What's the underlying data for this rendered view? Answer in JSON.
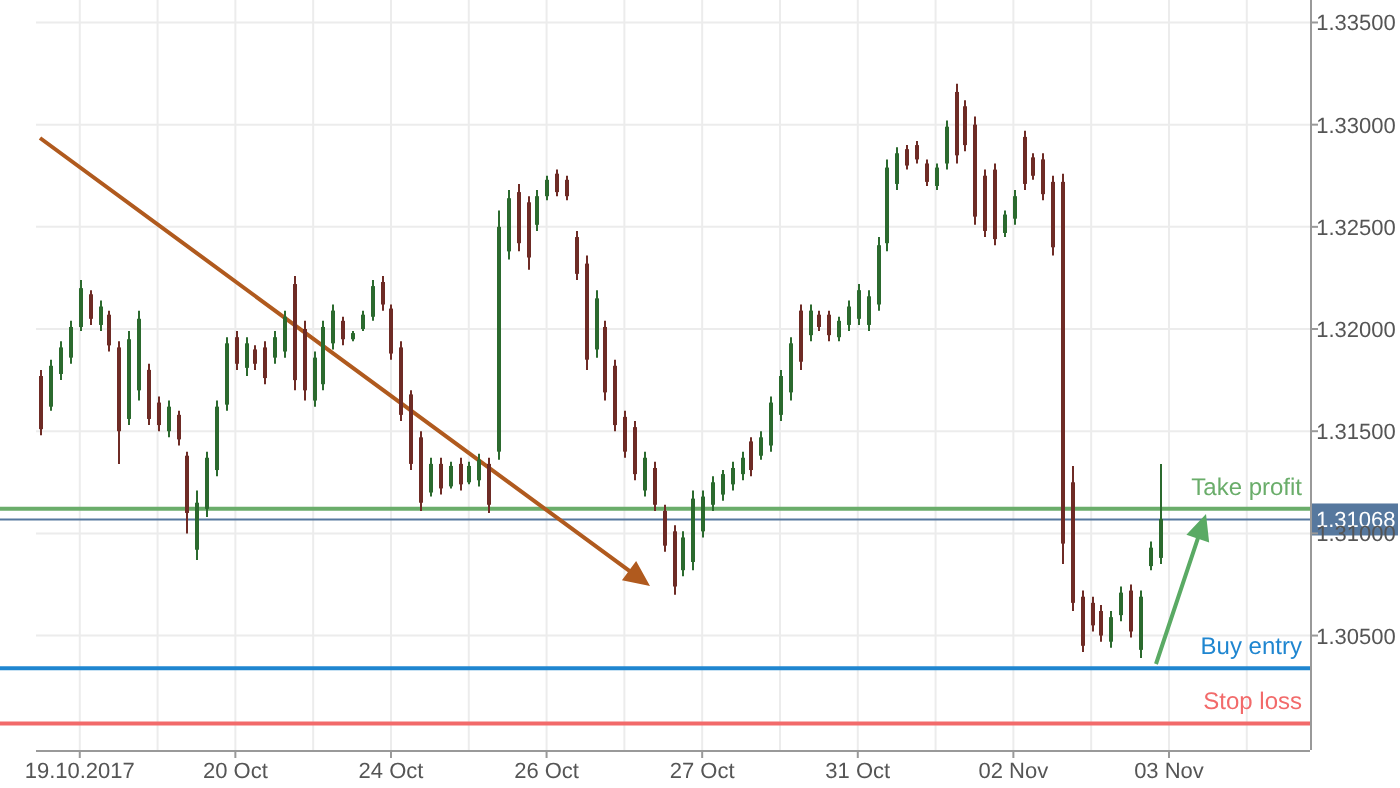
{
  "chart_data": {
    "type": "candlestick",
    "categories": [
      null,
      null,
      null,
      null,
      "19.10.2017",
      null,
      null,
      null,
      null,
      null,
      null,
      null,
      null,
      null,
      null,
      null,
      null,
      null,
      null,
      null,
      "20 Oct",
      null,
      null,
      null,
      null,
      null,
      null,
      null,
      null,
      null,
      null,
      null,
      null,
      null,
      null,
      null,
      "24 Oct",
      null,
      null,
      null,
      null,
      null,
      null,
      null,
      null,
      null,
      null,
      null,
      null,
      null,
      null,
      null,
      "26 Oct",
      null,
      null,
      null,
      null,
      null,
      null,
      null,
      null,
      null,
      null,
      null,
      null,
      null,
      null,
      null,
      "27 Oct",
      null,
      null,
      null,
      null,
      null,
      null,
      null,
      null,
      null,
      null,
      null,
      null,
      null,
      null,
      null,
      "31 Oct",
      null,
      null,
      null,
      null,
      null,
      null,
      null,
      null,
      null,
      null,
      null,
      null,
      null,
      null,
      null,
      "02 Nov",
      null,
      null,
      null,
      null,
      null,
      null,
      null,
      null,
      null,
      null,
      null,
      null,
      null,
      null,
      null,
      "03 Nov",
      null,
      null,
      null,
      null,
      null,
      null,
      null,
      null,
      null,
      null,
      null,
      null,
      null,
      null
    ],
    "ohlc": [
      [
        1.3177,
        1.318,
        1.3148,
        1.3151
      ],
      [
        1.3162,
        1.3185,
        1.316,
        1.3182
      ],
      [
        1.3178,
        1.3194,
        1.3175,
        1.3191
      ],
      [
        1.3186,
        1.3204,
        1.3183,
        1.3201
      ],
      [
        1.3201,
        1.3224,
        1.3199,
        1.322
      ],
      [
        1.3217,
        1.3219,
        1.3202,
        1.3205
      ],
      [
        1.3202,
        1.3214,
        1.3199,
        1.3211
      ],
      [
        1.3207,
        1.3209,
        1.3189,
        1.3192
      ],
      [
        1.3191,
        1.3194,
        1.3134,
        1.315
      ],
      [
        1.3156,
        1.3199,
        1.3153,
        1.3195
      ],
      [
        1.317,
        1.3209,
        1.3165,
        1.3205
      ],
      [
        1.318,
        1.3183,
        1.3153,
        1.3156
      ],
      [
        1.3164,
        1.3167,
        1.315,
        1.3153
      ],
      [
        1.315,
        1.3165,
        1.3147,
        1.3162
      ],
      [
        1.3158,
        1.316,
        1.3143,
        1.3146
      ],
      [
        1.3138,
        1.314,
        1.31,
        1.311
      ],
      [
        1.3092,
        1.3121,
        1.3087,
        1.3115
      ],
      [
        1.3112,
        1.314,
        1.3108,
        1.3137
      ],
      [
        1.3131,
        1.3165,
        1.3128,
        1.3162
      ],
      [
        1.3163,
        1.3196,
        1.316,
        1.3193
      ],
      [
        1.3196,
        1.3199,
        1.318,
        1.3183
      ],
      [
        1.3181,
        1.3196,
        1.3177,
        1.3193
      ],
      [
        1.319,
        1.3192,
        1.318,
        1.3183
      ],
      [
        1.3191,
        1.3194,
        1.3173,
        1.3176
      ],
      [
        1.3186,
        1.3199,
        1.3183,
        1.3196
      ],
      [
        1.3189,
        1.3209,
        1.3186,
        1.3206
      ],
      [
        1.3222,
        1.3226,
        1.317,
        1.3175
      ],
      [
        1.32,
        1.3204,
        1.3165,
        1.317
      ],
      [
        1.3165,
        1.3189,
        1.3162,
        1.3186
      ],
      [
        1.3173,
        1.3204,
        1.317,
        1.3201
      ],
      [
        1.3193,
        1.3212,
        1.319,
        1.3209
      ],
      [
        1.3204,
        1.3206,
        1.3192,
        1.3195
      ],
      [
        1.3195,
        1.3199,
        1.3194,
        1.3198
      ],
      [
        1.32,
        1.3209,
        1.3199,
        1.3207
      ],
      [
        1.3206,
        1.3224,
        1.3204,
        1.3221
      ],
      [
        1.3223,
        1.3226,
        1.3209,
        1.3212
      ],
      [
        1.321,
        1.3212,
        1.3185,
        1.3188
      ],
      [
        1.3191,
        1.3194,
        1.3155,
        1.3158
      ],
      [
        1.3168,
        1.317,
        1.3131,
        1.3134
      ],
      [
        1.3147,
        1.315,
        1.3111,
        1.3115
      ],
      [
        1.312,
        1.3137,
        1.3118,
        1.3134
      ],
      [
        1.3134,
        1.3137,
        1.3119,
        1.3122
      ],
      [
        1.3123,
        1.3135,
        1.3122,
        1.3133
      ],
      [
        1.3134,
        1.3137,
        1.3121,
        1.3124
      ],
      [
        1.3125,
        1.3135,
        1.3124,
        1.3133
      ],
      [
        1.3126,
        1.3139,
        1.3123,
        1.3136
      ],
      [
        1.3134,
        1.3137,
        1.311,
        1.3114
      ],
      [
        1.314,
        1.3258,
        1.3136,
        1.325
      ],
      [
        1.3238,
        1.3268,
        1.3234,
        1.3264
      ],
      [
        1.3267,
        1.3271,
        1.3238,
        1.3242
      ],
      [
        1.3262,
        1.3265,
        1.3229,
        1.3235
      ],
      [
        1.3251,
        1.3268,
        1.3248,
        1.3265
      ],
      [
        1.3265,
        1.3275,
        1.3263,
        1.3273
      ],
      [
        1.3276,
        1.3278,
        1.3265,
        1.3267
      ],
      [
        1.3273,
        1.3275,
        1.3263,
        1.3265
      ],
      [
        1.3245,
        1.3248,
        1.3224,
        1.3227
      ],
      [
        1.3232,
        1.3236,
        1.318,
        1.3185
      ],
      [
        1.319,
        1.3219,
        1.3186,
        1.3215
      ],
      [
        1.3201,
        1.3204,
        1.3165,
        1.3169
      ],
      [
        1.3182,
        1.3185,
        1.315,
        1.3153
      ],
      [
        1.3157,
        1.316,
        1.3137,
        1.314
      ],
      [
        1.3152,
        1.3155,
        1.3126,
        1.3129
      ],
      [
        1.3121,
        1.314,
        1.3118,
        1.3137
      ],
      [
        1.3132,
        1.3135,
        1.3111,
        1.3114
      ],
      [
        1.3111,
        1.3114,
        1.3091,
        1.3094
      ],
      [
        1.3101,
        1.3104,
        1.307,
        1.3074
      ],
      [
        1.3082,
        1.3101,
        1.3079,
        1.3098
      ],
      [
        1.3086,
        1.3121,
        1.3082,
        1.3117
      ],
      [
        1.3101,
        1.3121,
        1.3098,
        1.3118
      ],
      [
        1.3114,
        1.3128,
        1.3111,
        1.3125
      ],
      [
        1.3119,
        1.3131,
        1.3116,
        1.3129
      ],
      [
        1.3124,
        1.3135,
        1.3121,
        1.3132
      ],
      [
        1.3129,
        1.314,
        1.3126,
        1.3137
      ],
      [
        1.3145,
        1.3147,
        1.3128,
        1.3131
      ],
      [
        1.3138,
        1.315,
        1.3136,
        1.3147
      ],
      [
        1.3143,
        1.3167,
        1.314,
        1.3164
      ],
      [
        1.3158,
        1.318,
        1.3155,
        1.3177
      ],
      [
        1.3169,
        1.3196,
        1.3165,
        1.3193
      ],
      [
        1.3209,
        1.3212,
        1.318,
        1.3184
      ],
      [
        1.3197,
        1.3212,
        1.3194,
        1.3209
      ],
      [
        1.3207,
        1.3209,
        1.3199,
        1.3201
      ],
      [
        1.3207,
        1.3209,
        1.3194,
        1.3197
      ],
      [
        1.3196,
        1.3206,
        1.3194,
        1.3204
      ],
      [
        1.3202,
        1.3214,
        1.3199,
        1.3211
      ],
      [
        1.3205,
        1.3222,
        1.3202,
        1.3219
      ],
      [
        1.3202,
        1.3219,
        1.3199,
        1.3216
      ],
      [
        1.3212,
        1.3245,
        1.3209,
        1.3241
      ],
      [
        1.3242,
        1.3283,
        1.3238,
        1.3279
      ],
      [
        1.3271,
        1.3289,
        1.3268,
        1.3286
      ],
      [
        1.3288,
        1.329,
        1.3278,
        1.328
      ],
      [
        1.329,
        1.3292,
        1.3281,
        1.3283
      ],
      [
        1.3281,
        1.3283,
        1.327,
        1.3272
      ],
      [
        1.327,
        1.3281,
        1.3268,
        1.3279
      ],
      [
        1.3281,
        1.3302,
        1.3278,
        1.3299
      ],
      [
        1.3316,
        1.332,
        1.3281,
        1.3285
      ],
      [
        1.3309,
        1.3312,
        1.3287,
        1.329
      ],
      [
        1.33,
        1.3304,
        1.3251,
        1.3255
      ],
      [
        1.3275,
        1.3278,
        1.3245,
        1.3248
      ],
      [
        1.3278,
        1.3281,
        1.3241,
        1.3244
      ],
      [
        1.3247,
        1.3258,
        1.3245,
        1.3256
      ],
      [
        1.3254,
        1.3268,
        1.3251,
        1.3265
      ],
      [
        1.3294,
        1.3297,
        1.3268,
        1.3271
      ],
      [
        1.3284,
        1.3286,
        1.3273,
        1.3275
      ],
      [
        1.3283,
        1.3286,
        1.3263,
        1.3266
      ],
      [
        1.3272,
        1.3275,
        1.3236,
        1.324
      ],
      [
        1.3272,
        1.3276,
        1.3085,
        1.3095
      ],
      [
        1.3125,
        1.3133,
        1.3062,
        1.3066
      ],
      [
        1.3069,
        1.3072,
        1.3042,
        1.3045
      ],
      [
        1.3066,
        1.3069,
        1.3052,
        1.3055
      ],
      [
        1.3062,
        1.3065,
        1.3047,
        1.305
      ],
      [
        1.3047,
        1.3062,
        1.3044,
        1.3059
      ],
      [
        1.306,
        1.3074,
        1.3057,
        1.3071
      ],
      [
        1.3072,
        1.3075,
        1.3049,
        1.3052
      ],
      [
        1.3043,
        1.3072,
        1.3039,
        1.3069
      ],
      [
        1.3084,
        1.3096,
        1.3082,
        1.3093
      ],
      [
        1.3088,
        1.3134,
        1.3085,
        1.3107
      ],
      null,
      null,
      null,
      null,
      null,
      null,
      null,
      null,
      null,
      null,
      null,
      null,
      null,
      null,
      null
    ],
    "colors": [
      "#6e2b25",
      "#2b6a2e",
      "#2b6a2e",
      "#2b6a2e",
      "#2b6a2e",
      "#6e2b25",
      "#2b6a2e",
      "#6e2b25",
      "#6e2b25",
      "#2b6a2e",
      "#2b6a2e",
      "#6e2b25",
      "#6e2b25",
      "#2b6a2e",
      "#6e2b25",
      "#6e2b25",
      "#2b6a2e",
      "#2b6a2e",
      "#2b6a2e",
      "#2b6a2e",
      "#6e2b25",
      "#2b6a2e",
      "#6e2b25",
      "#6e2b25",
      "#2b6a2e",
      "#2b6a2e",
      "#6e2b25",
      "#6e2b25",
      "#2b6a2e",
      "#2b6a2e",
      "#2b6a2e",
      "#6e2b25",
      "#2b6a2e",
      "#2b6a2e",
      "#2b6a2e",
      "#6e2b25",
      "#6e2b25",
      "#6e2b25",
      "#6e2b25",
      "#6e2b25",
      "#2b6a2e",
      "#6e2b25",
      "#2b6a2e",
      "#6e2b25",
      "#2b6a2e",
      "#2b6a2e",
      "#6e2b25",
      "#2b6a2e",
      "#2b6a2e",
      "#6e2b25",
      "#6e2b25",
      "#2b6a2e",
      "#2b6a2e",
      "#6e2b25",
      "#6e2b25",
      "#6e2b25",
      "#6e2b25",
      "#2b6a2e",
      "#6e2b25",
      "#6e2b25",
      "#6e2b25",
      "#6e2b25",
      "#2b6a2e",
      "#6e2b25",
      "#6e2b25",
      "#6e2b25",
      "#2b6a2e",
      "#2b6a2e",
      "#2b6a2e",
      "#2b6a2e",
      "#2b6a2e",
      "#2b6a2e",
      "#2b6a2e",
      "#6e2b25",
      "#2b6a2e",
      "#2b6a2e",
      "#2b6a2e",
      "#2b6a2e",
      "#6e2b25",
      "#2b6a2e",
      "#6e2b25",
      "#6e2b25",
      "#2b6a2e",
      "#2b6a2e",
      "#2b6a2e",
      "#2b6a2e",
      "#2b6a2e",
      "#2b6a2e",
      "#2b6a2e",
      "#6e2b25",
      "#6e2b25",
      "#6e2b25",
      "#2b6a2e",
      "#2b6a2e",
      "#6e2b25",
      "#6e2b25",
      "#6e2b25",
      "#6e2b25",
      "#6e2b25",
      "#2b6a2e",
      "#2b6a2e",
      "#6e2b25",
      "#6e2b25",
      "#6e2b25",
      "#6e2b25",
      "#6e2b25",
      "#6e2b25",
      "#6e2b25",
      "#6e2b25",
      "#6e2b25",
      "#2b6a2e",
      "#2b6a2e",
      "#6e2b25",
      "#2b6a2e",
      "#2b6a2e",
      "#2b6a2e",
      null,
      null,
      null,
      null,
      null,
      null,
      null,
      null,
      null,
      null,
      null,
      null,
      null,
      null,
      null
    ],
    "ylim": [
      1.2994,
      1.3361
    ],
    "yticks": [
      {
        "value": 1.305,
        "label": "1.30500"
      },
      {
        "value": 1.31,
        "label": "1.31000"
      },
      {
        "value": 1.315,
        "label": "1.31500"
      },
      {
        "value": 1.32,
        "label": "1.32000"
      },
      {
        "value": 1.325,
        "label": "1.32500"
      },
      {
        "value": 1.33,
        "label": "1.33000"
      },
      {
        "value": 1.335,
        "label": "1.33500"
      }
    ],
    "grid": true,
    "ref_lines": [
      {
        "axis": "y",
        "value": 1.3112,
        "label": "Take profit",
        "color": "#6aad6a"
      },
      {
        "axis": "y",
        "value": 1.31068,
        "label": "1.31068",
        "color": "#56789e"
      },
      {
        "axis": "y",
        "value": 1.3034,
        "label": "Buy entry",
        "color": "#1f86d0"
      },
      {
        "axis": "y",
        "value": 1.3007,
        "label": "Stop loss",
        "color": "#f26a6a"
      }
    ]
  }
}
